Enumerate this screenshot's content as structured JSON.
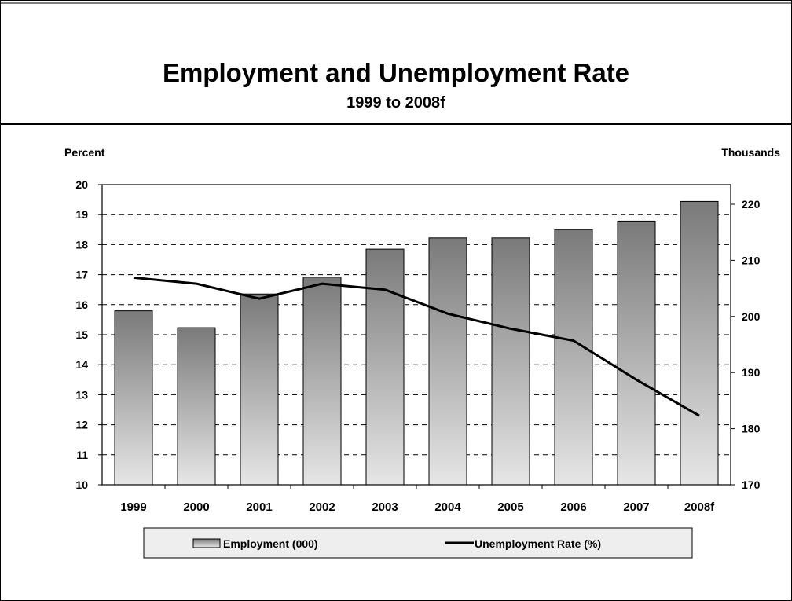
{
  "title": "Employment and Unemployment Rate",
  "subtitle": "1999 to 2008f",
  "left_axis_label": "Percent",
  "right_axis_label": "Thousands",
  "legend": {
    "bar_label": "Employment (000)",
    "line_label": "Unemployment Rate (%)",
    "placement": "bottom"
  },
  "colors": {
    "bar_top": "#7a7a7a",
    "bar_bottom": "#e6e6e6",
    "line": "#000000",
    "grid": "#000000",
    "legend_bg": "#eeeeee"
  },
  "chart_data": {
    "type": "bar",
    "categories": [
      "1999",
      "2000",
      "2001",
      "2002",
      "2003",
      "2004",
      "2005",
      "2006",
      "2007",
      "2008f"
    ],
    "series": [
      {
        "name": "Employment (000)",
        "type": "bar",
        "axis": "right",
        "values": [
          201,
          198,
          204,
          207,
          212,
          214,
          214,
          215.5,
          217,
          220.5
        ]
      },
      {
        "name": "Unemployment Rate (%)",
        "type": "line",
        "axis": "left",
        "values": [
          16.9,
          16.7,
          16.2,
          16.7,
          16.5,
          15.7,
          15.2,
          14.8,
          13.5,
          12.3
        ]
      }
    ],
    "y_left": {
      "ylim": [
        10,
        20
      ],
      "ticks": [
        10,
        11,
        12,
        13,
        14,
        15,
        16,
        17,
        18,
        19,
        20
      ]
    },
    "y_right": {
      "ylim": [
        170,
        223.5
      ],
      "ticks": [
        170,
        180,
        190,
        200,
        210,
        220
      ]
    },
    "grid": "dashed horizontal"
  }
}
